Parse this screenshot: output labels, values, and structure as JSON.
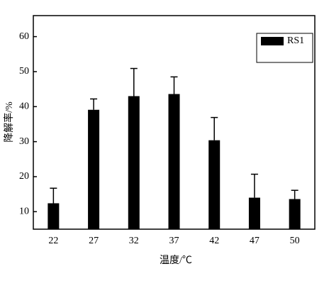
{
  "chart_data": {
    "type": "bar",
    "x_label": "温度/℃",
    "y_label": "降解率/%",
    "categories": [
      "22",
      "27",
      "32",
      "37",
      "42",
      "47",
      "50"
    ],
    "series": [
      {
        "name": "RS1",
        "color": "#000000",
        "values": [
          12.4,
          39.1,
          43.0,
          43.6,
          30.4,
          14.0,
          13.6
        ],
        "errors": [
          4.3,
          3.1,
          7.9,
          4.9,
          6.5,
          6.7,
          2.5
        ]
      }
    ],
    "ylim": [
      5,
      66
    ],
    "yticks": [
      10,
      20,
      30,
      40,
      50,
      60
    ],
    "grid": false,
    "legend": "top-right"
  }
}
